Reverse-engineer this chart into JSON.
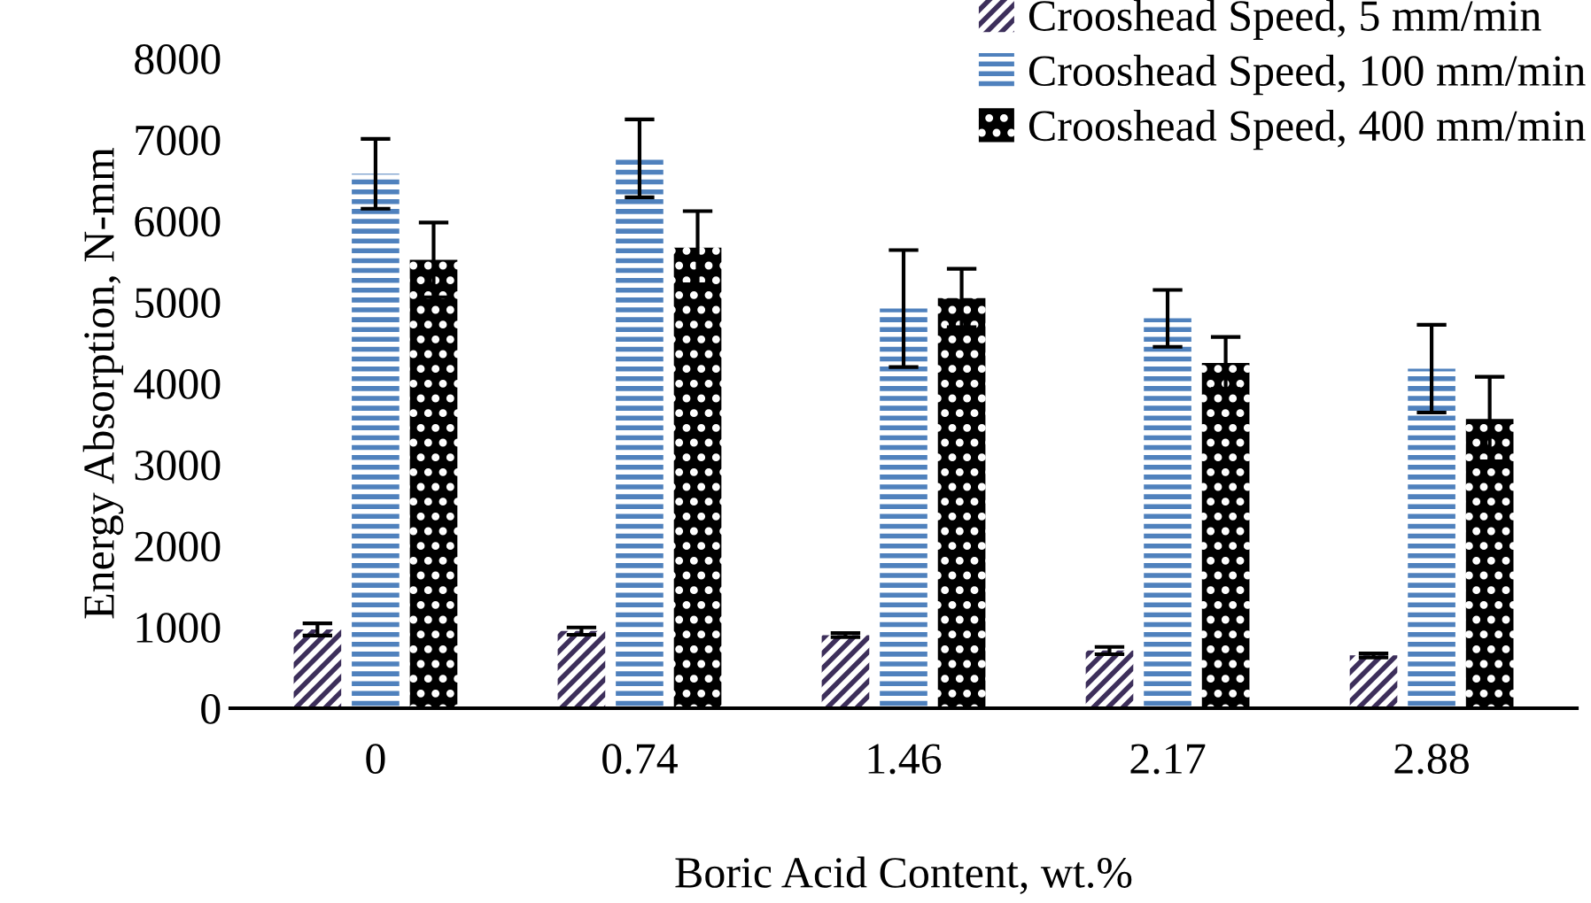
{
  "chart_data": {
    "type": "bar",
    "xlabel": "Boric Acid Content, wt.%",
    "ylabel": "Energy Absorption, N-mm",
    "categories": [
      "0",
      "0.74",
      "1.46",
      "2.17",
      "2.88"
    ],
    "series": [
      {
        "name": "Crooshead Speed, 5 mm/min",
        "color": "#3d2f5b",
        "values": [
          970,
          950,
          900,
          710,
          650
        ],
        "errors": [
          75,
          45,
          25,
          45,
          25
        ]
      },
      {
        "name": "Crooshead Speed, 100 mm/min",
        "color": "#4f81bd",
        "values": [
          6580,
          6770,
          4920,
          4800,
          4180
        ],
        "errors": [
          430,
          480,
          720,
          350,
          540
        ]
      },
      {
        "name": "Crooshead Speed, 400 mm/min",
        "color": "#000000",
        "values": [
          5520,
          5670,
          5050,
          4250,
          3560
        ],
        "errors": [
          460,
          450,
          360,
          320,
          520
        ]
      }
    ],
    "ylim": [
      0,
      8000
    ],
    "yticks": [
      0,
      1000,
      2000,
      3000,
      4000,
      5000,
      6000,
      7000,
      8000
    ],
    "grid": false,
    "legend": "top right"
  }
}
